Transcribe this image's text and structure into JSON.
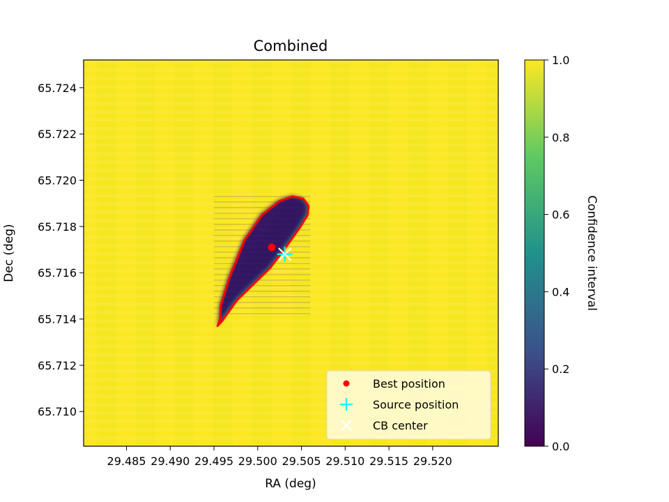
{
  "chart_data": {
    "type": "heatmap",
    "title": "Combined",
    "xlabel": "RA (deg)",
    "ylabel": "Dec (deg)",
    "colorbar_label": "Confidence interval",
    "colormap": "viridis",
    "colormap_stops": [
      "#440154",
      "#3b528b",
      "#21918c",
      "#5ec962",
      "#fde725"
    ],
    "xlim": [
      29.4801,
      29.5275
    ],
    "ylim": [
      65.7085,
      65.7252
    ],
    "x_ticks": [
      {
        "value": 29.485,
        "label": "29.485"
      },
      {
        "value": 29.49,
        "label": "29.490"
      },
      {
        "value": 29.495,
        "label": "29.495"
      },
      {
        "value": 29.5,
        "label": "29.500"
      },
      {
        "value": 29.505,
        "label": "29.505"
      },
      {
        "value": 29.51,
        "label": "29.510"
      },
      {
        "value": 29.515,
        "label": "29.515"
      },
      {
        "value": 29.52,
        "label": "29.520"
      }
    ],
    "y_ticks": [
      {
        "value": 65.71,
        "label": "65.710"
      },
      {
        "value": 65.712,
        "label": "65.712"
      },
      {
        "value": 65.714,
        "label": "65.714"
      },
      {
        "value": 65.716,
        "label": "65.716"
      },
      {
        "value": 65.718,
        "label": "65.718"
      },
      {
        "value": 65.72,
        "label": "65.720"
      },
      {
        "value": 65.722,
        "label": "65.722"
      },
      {
        "value": 65.724,
        "label": "65.724"
      }
    ],
    "colorbar_ticks": [
      {
        "value": 0.0,
        "label": "0.0"
      },
      {
        "value": 0.2,
        "label": "0.2"
      },
      {
        "value": 0.4,
        "label": "0.4"
      },
      {
        "value": 0.6,
        "label": "0.6"
      },
      {
        "value": 0.8,
        "label": "0.8"
      },
      {
        "value": 1.0,
        "label": "1.0"
      }
    ],
    "colorbar_range": [
      0.0,
      1.0
    ],
    "background_value": 1.0,
    "inside_region_value": 0.1,
    "confidence_region_contour": {
      "color": "#ff0000",
      "points": [
        [
          29.4957,
          65.714
        ],
        [
          29.4954,
          65.7137
        ],
        [
          29.4959,
          65.7139
        ],
        [
          29.4976,
          65.7148
        ],
        [
          29.4995,
          65.7155
        ],
        [
          29.5014,
          65.7162
        ],
        [
          29.5032,
          65.7171
        ],
        [
          29.5049,
          65.718
        ],
        [
          29.5057,
          65.7185
        ],
        [
          29.5058,
          65.7189
        ],
        [
          29.5052,
          65.7192
        ],
        [
          29.504,
          65.7193
        ],
        [
          29.5025,
          65.7191
        ],
        [
          29.5005,
          65.7185
        ],
        [
          29.4985,
          65.7174
        ],
        [
          29.4968,
          65.7158
        ],
        [
          29.4958,
          65.7146
        ]
      ]
    },
    "markers": [
      {
        "name": "Best position",
        "x": 29.5016,
        "y": 65.7171,
        "color": "#ff0000",
        "shape": "circle"
      },
      {
        "name": "Source position",
        "x": 29.5031,
        "y": 65.7168,
        "color": "#00ffff",
        "shape": "plus"
      },
      {
        "name": "CB center",
        "x": 29.5031,
        "y": 65.7168,
        "color": "#ffffff",
        "shape": "x"
      }
    ],
    "legend": {
      "placement": "lower right",
      "entries": [
        "Best position",
        "Source position",
        "CB center"
      ]
    }
  }
}
